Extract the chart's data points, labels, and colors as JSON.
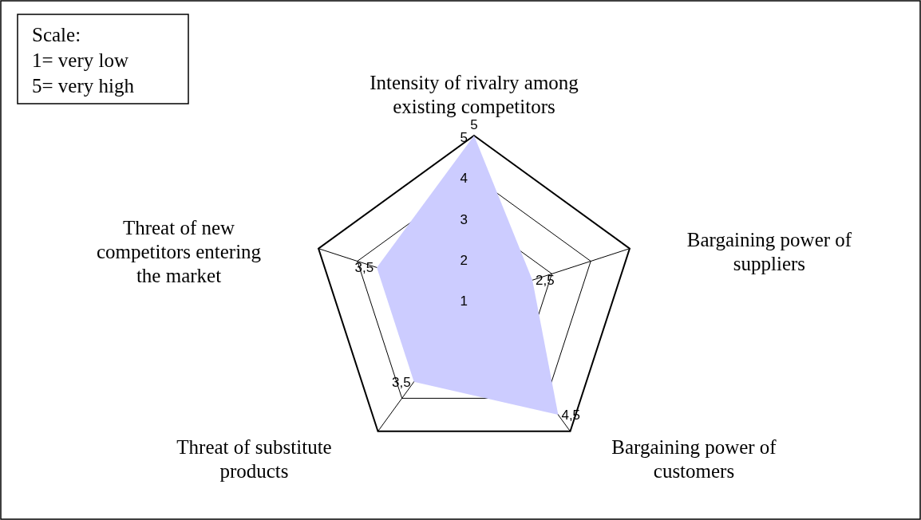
{
  "chart_data": {
    "type": "radar",
    "categories": [
      "Intensity of rivalry among existing competitors",
      "Bargaining power of suppliers",
      "Bargaining power of customers",
      "Threat of substitute products",
      "Threat of new competitors entering the market"
    ],
    "series": [
      {
        "color": "#ccccff",
        "values": [
          5,
          2.5,
          4.5,
          3.5,
          3.5
        ],
        "value_labels": [
          "5",
          "2,5",
          "4,5",
          "3,5",
          "3,5"
        ]
      }
    ],
    "ylim": [
      1,
      5
    ],
    "yticks": [
      1,
      2,
      3,
      4,
      5
    ],
    "grid": true,
    "annotations": [
      "Scale:",
      "1= very low",
      "5= very high"
    ]
  }
}
